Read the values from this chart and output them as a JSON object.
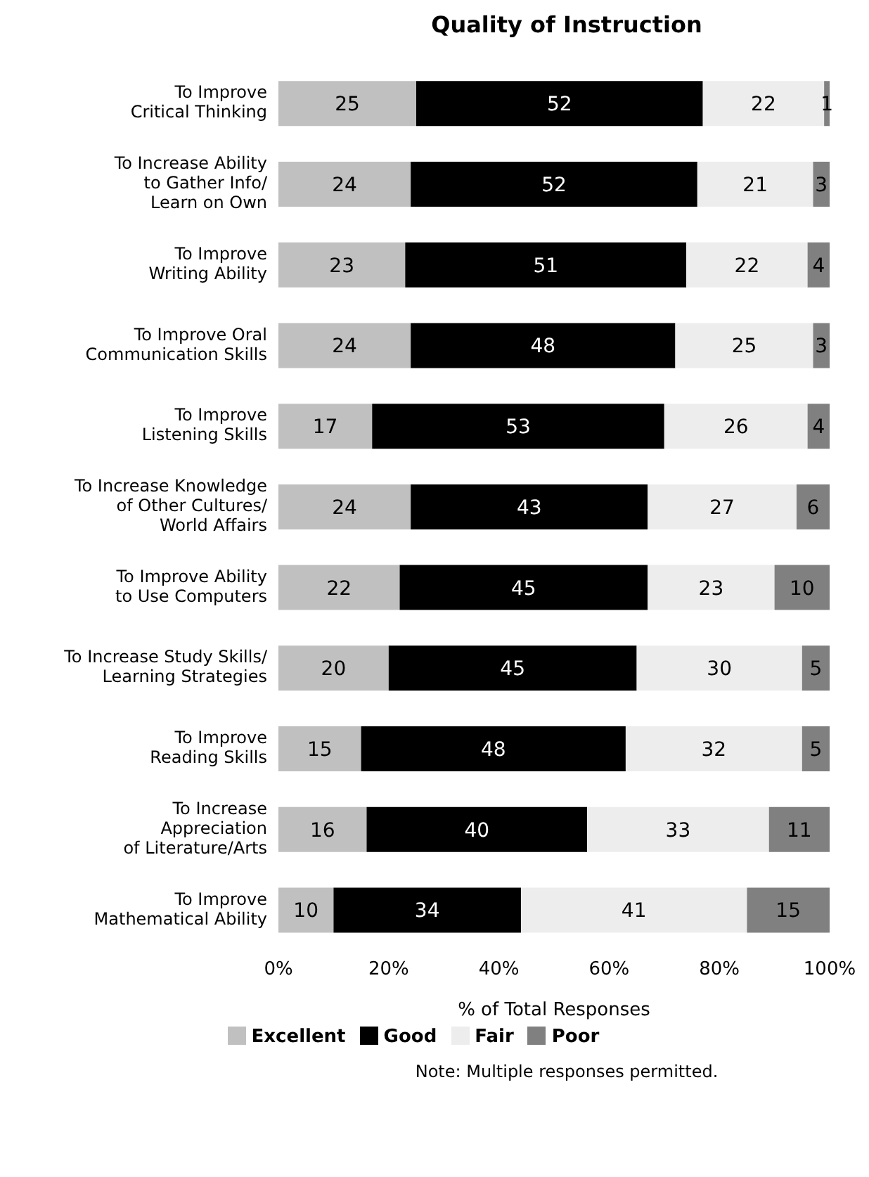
{
  "chart_data": {
    "type": "bar",
    "orientation": "horizontal",
    "stacked": true,
    "title": "Quality of Instruction",
    "xlabel": "% of Total Responses",
    "categories": [
      "To Improve\nCritical Thinking",
      "To Increase Ability\nto Gather Info/\nLearn on Own",
      "To Improve\nWriting Ability",
      "To Improve Oral\nCommunication Skills",
      "To Improve\nListening Skills",
      "To Increase Knowledge\nof Other Cultures/\nWorld Affairs",
      "To Improve Ability\nto Use Computers",
      "To Increase Study Skills/\nLearning Strategies",
      "To Improve\nReading Skills",
      "To Increase\nAppreciation\nof Literature/Arts",
      "To Improve\nMathematical Ability"
    ],
    "series": [
      {
        "name": "Excellent",
        "color": "#c0c0c0",
        "values": [
          25,
          24,
          23,
          24,
          17,
          24,
          22,
          20,
          15,
          16,
          10
        ]
      },
      {
        "name": "Good",
        "color": "#000000",
        "values": [
          52,
          52,
          51,
          48,
          53,
          43,
          45,
          45,
          48,
          40,
          34
        ]
      },
      {
        "name": "Fair",
        "color": "#ededed",
        "values": [
          22,
          21,
          22,
          25,
          26,
          27,
          23,
          30,
          32,
          33,
          41
        ]
      },
      {
        "name": "Poor",
        "color": "#808080",
        "values": [
          1,
          3,
          4,
          3,
          4,
          6,
          10,
          5,
          5,
          11,
          15
        ]
      }
    ],
    "xlim": [
      0,
      100
    ],
    "xticks": [
      {
        "value": 0,
        "label": "0%"
      },
      {
        "value": 20,
        "label": "20%"
      },
      {
        "value": 40,
        "label": "40%"
      },
      {
        "value": 60,
        "label": "60%"
      },
      {
        "value": 80,
        "label": "80%"
      },
      {
        "value": 100,
        "label": "100%"
      }
    ],
    "data_labels": true,
    "legend": "bottom",
    "annotations": [
      "Note: Multiple responses permitted."
    ]
  }
}
